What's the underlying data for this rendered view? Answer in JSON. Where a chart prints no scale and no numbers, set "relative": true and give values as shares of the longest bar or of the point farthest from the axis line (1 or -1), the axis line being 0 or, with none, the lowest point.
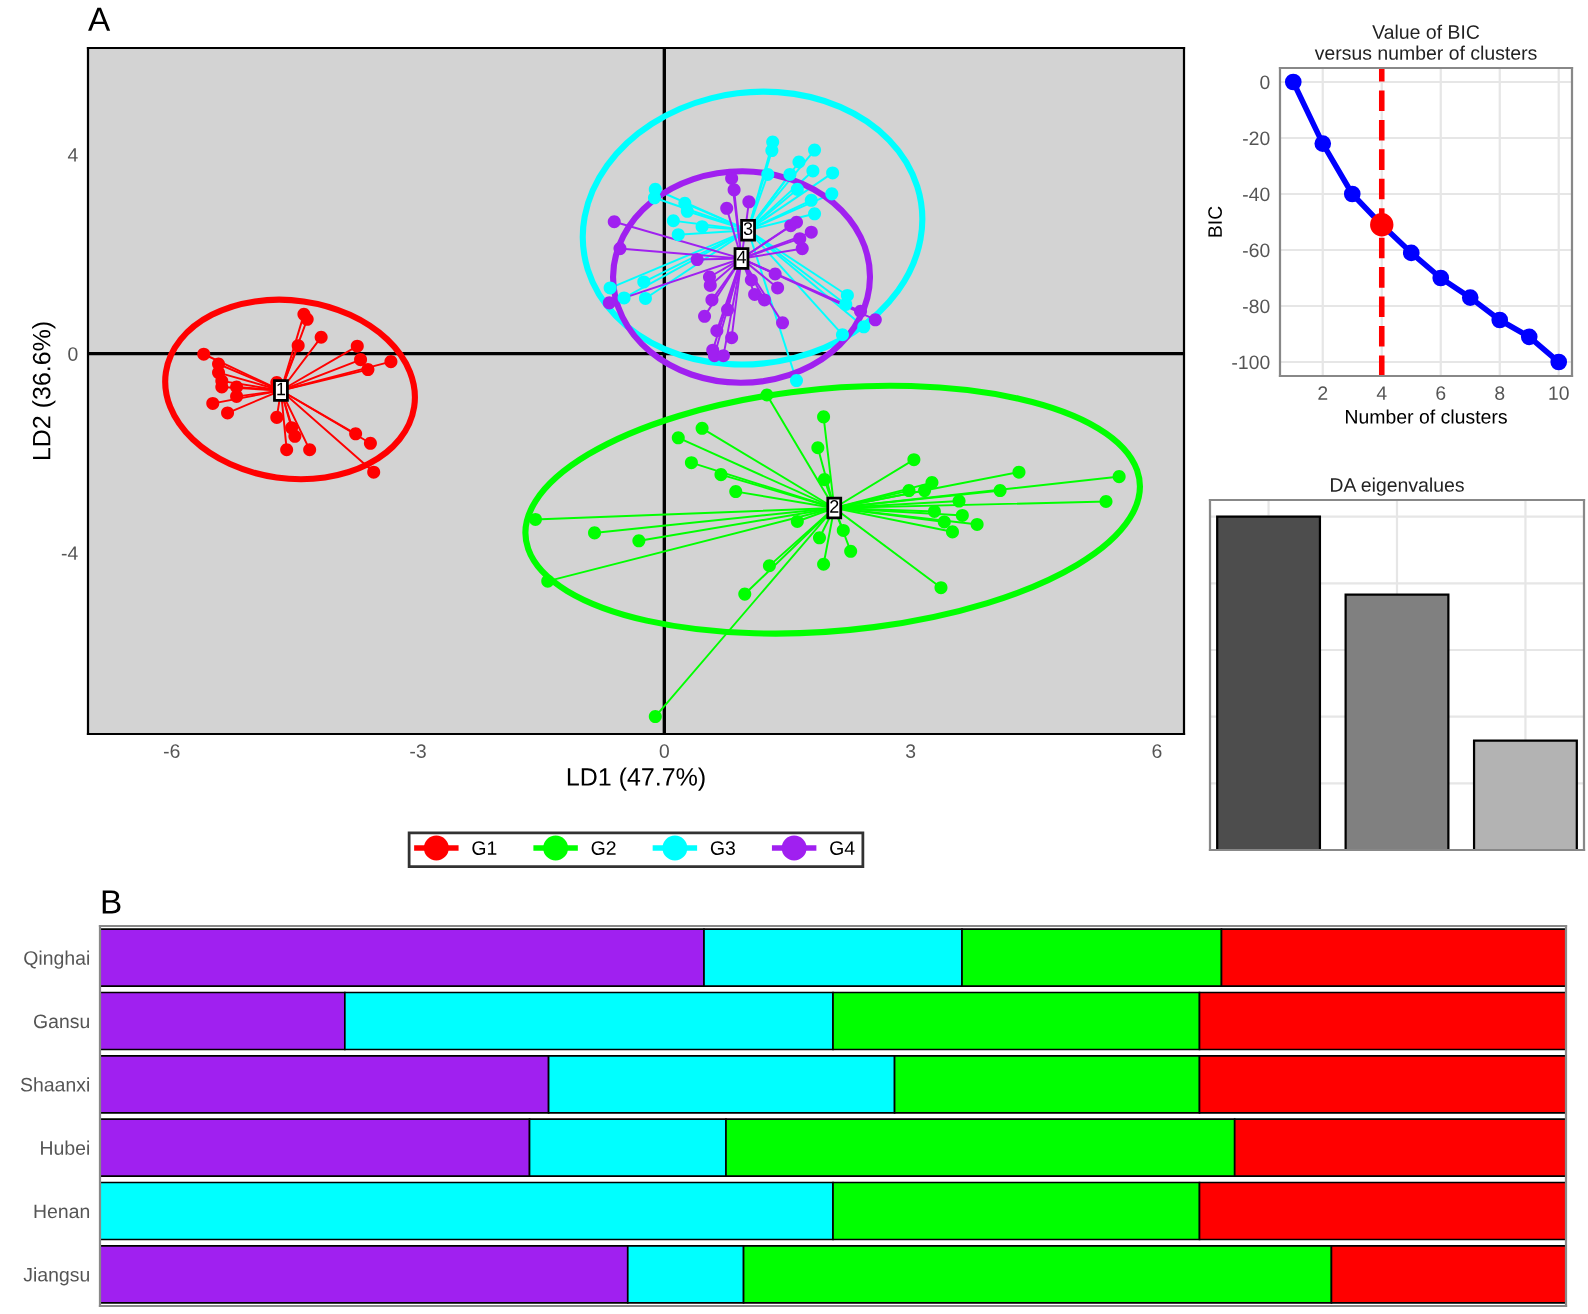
{
  "chart_data": [
    {
      "type": "scatter",
      "annotations": [
        "A",
        {
          "text": "1",
          "x": -4.67,
          "y": -0.74
        },
        {
          "text": "2",
          "x": 2.07,
          "y": -3.1
        },
        {
          "text": "3",
          "x": 1.02,
          "y": 2.48
        },
        {
          "text": "4",
          "x": 0.94,
          "y": 1.91
        }
      ],
      "xlabel": "LD1 (47.7%)",
      "ylabel": "LD2 (36.6%)",
      "xlim": [
        -7.02,
        6.33
      ],
      "ylim": [
        -7.64,
        6.14
      ],
      "xticks": [
        -6,
        -3,
        0,
        3,
        6
      ],
      "yticks": [
        -4,
        0,
        4
      ],
      "legend": "bottom",
      "grid": false,
      "marker": "circle",
      "ref_lines": [
        {
          "axis": "x",
          "value": 0,
          "color": "#000000"
        },
        {
          "axis": "y",
          "value": 0,
          "color": "#000000"
        }
      ],
      "series": [
        {
          "name": "G1",
          "color": "#ff0000",
          "x": [
            -5.61,
            -5.43,
            -5.43,
            -5.39,
            -5.39,
            -5.21,
            -5.21,
            -5.5,
            -5.32,
            -4.72,
            -4.72,
            -4.54,
            -4.5,
            -4.6,
            -4.32,
            -3.76,
            -3.58,
            -3.54,
            -4.39,
            -4.35,
            -4.18,
            -4.46,
            -3.74,
            -3.7,
            -3.61,
            -3.33
          ],
          "values": [
            -0.01,
            -0.21,
            -0.38,
            -0.55,
            -0.67,
            -0.67,
            -0.86,
            -1.0,
            -1.19,
            -0.58,
            -1.28,
            -1.49,
            -1.66,
            -1.93,
            -1.93,
            -1.61,
            -1.8,
            -2.38,
            0.79,
            0.69,
            0.33,
            0.16,
            0.15,
            -0.12,
            -0.32,
            -0.16
          ]
        },
        {
          "name": "G2",
          "color": "#00ff00",
          "x": [
            1.25,
            1.94,
            1.87,
            1.95,
            3.04,
            4.32,
            5.54,
            5.38,
            4.09,
            3.26,
            2.98,
            3.17,
            3.59,
            3.29,
            3.63,
            3.81,
            3.51,
            3.41,
            3.37,
            2.27,
            2.18,
            1.94,
            1.89,
            1.62,
            1.28,
            0.98,
            0.46,
            0.17,
            0.33,
            0.69,
            0.87,
            -1.57,
            -0.85,
            -0.31,
            -1.42,
            -0.11
          ],
          "values": [
            -0.83,
            -1.27,
            -1.89,
            -2.53,
            -2.13,
            -2.38,
            -2.47,
            -2.97,
            -2.75,
            -2.59,
            -2.75,
            -2.75,
            -2.96,
            -3.17,
            -3.25,
            -3.43,
            -3.58,
            -3.38,
            -4.7,
            -3.97,
            -3.55,
            -4.23,
            -3.7,
            -3.37,
            -4.26,
            -4.83,
            -1.5,
            -1.69,
            -2.19,
            -2.43,
            -2.77,
            -3.33,
            -3.6,
            -3.76,
            -4.57,
            -7.29
          ]
        },
        {
          "name": "G3",
          "color": "#00ffff",
          "x": [
            1.32,
            1.31,
            1.83,
            1.64,
            1.81,
            2.05,
            1.53,
            1.26,
            1.62,
            2.04,
            1.79,
            1.83,
            -0.11,
            -0.12,
            0.25,
            0.28,
            0.11,
            0.46,
            0.17,
            -0.25,
            -0.66,
            -0.49,
            -0.23,
            2.23,
            2.21,
            2.17,
            2.43,
            1.61
          ],
          "values": [
            4.25,
            4.08,
            4.09,
            3.85,
            3.67,
            3.63,
            3.6,
            3.6,
            3.3,
            3.21,
            3.08,
            2.81,
            3.3,
            3.13,
            3.02,
            2.86,
            2.67,
            2.55,
            2.39,
            1.44,
            1.32,
            1.12,
            1.11,
            1.17,
            0.99,
            0.38,
            0.54,
            -0.54
          ]
        },
        {
          "name": "G4",
          "color": "#a020f0",
          "x": [
            0.82,
            0.85,
            1.03,
            0.76,
            -0.61,
            -0.54,
            0.4,
            1.54,
            1.61,
            1.79,
            1.68,
            0.55,
            0.56,
            0.58,
            0.49,
            0.64,
            0.82,
            0.59,
            0.61,
            0.72,
            0.77,
            1.06,
            1.1,
            1.22,
            1.35,
            1.38,
            1.44,
            2.39,
            2.57,
            -0.67,
            1.65
          ],
          "values": [
            3.52,
            3.29,
            3.05,
            2.92,
            2.65,
            2.11,
            1.89,
            2.57,
            2.64,
            2.44,
            2.11,
            1.54,
            1.37,
            1.08,
            0.75,
            0.46,
            0.32,
            0.07,
            -0.04,
            -0.04,
            0.88,
            1.48,
            1.19,
            1.08,
            1.6,
            1.32,
            0.62,
            0.85,
            0.68,
            1.02,
            2.31
          ]
        }
      ]
    },
    {
      "type": "line",
      "title": "Value of BIC\nversus number of clusters",
      "xlabel": "Number of clusters",
      "ylabel": "BIC",
      "x": [
        1,
        2,
        3,
        4,
        5,
        6,
        7,
        8,
        9,
        10
      ],
      "xlim": [
        0.55,
        10.45
      ],
      "ylim": [
        -105,
        5
      ],
      "xticks": [
        2,
        4,
        6,
        8,
        10
      ],
      "yticks": [
        0,
        -20,
        -40,
        -60,
        -80,
        -100
      ],
      "grid": true,
      "marker": "circle",
      "ref_lines": [
        {
          "axis": "x",
          "value": 4,
          "color": "#ff0000",
          "line_style": "dashed"
        }
      ],
      "series": [
        {
          "color": "#0000ff",
          "values": [
            0,
            -22,
            -40,
            -51,
            -61,
            -70,
            -77,
            -85,
            -91,
            -100
          ]
        },
        {
          "type": "scatter",
          "color": "#ff0000",
          "x": [
            4
          ],
          "values": [
            -51
          ]
        }
      ]
    },
    {
      "type": "bar",
      "title": "DA eigenvalues",
      "categories": [
        null,
        null,
        null
      ],
      "values": [
        1,
        0.766,
        0.328
      ],
      "colors": [
        "#4d4d4d",
        "#808080",
        "#b3b3b3"
      ],
      "relative": true,
      "grid": true,
      "tick_labels": false
    },
    {
      "type": "bar",
      "orientation": "horizontal",
      "stacked": true,
      "relative": true,
      "annotations": [
        "B"
      ],
      "categories": [
        "Qinghai",
        "Gansu",
        "Shaanxi",
        "Hubei",
        "Henan",
        "Jiangsu"
      ],
      "series": [
        {
          "color": "#a020f0",
          "values": [
            0.412,
            0.167,
            0.306,
            0.293,
            0,
            0.36
          ]
        },
        {
          "color": "#00ffff",
          "values": [
            0.176,
            0.333,
            0.236,
            0.134,
            0.5,
            0.079
          ]
        },
        {
          "color": "#00ff00",
          "values": [
            0.177,
            0.25,
            0.208,
            0.347,
            0.25,
            0.401
          ]
        },
        {
          "color": "#ff0000",
          "values": [
            0.235,
            0.25,
            0.25,
            0.226,
            0.25,
            0.16
          ]
        }
      ]
    }
  ]
}
